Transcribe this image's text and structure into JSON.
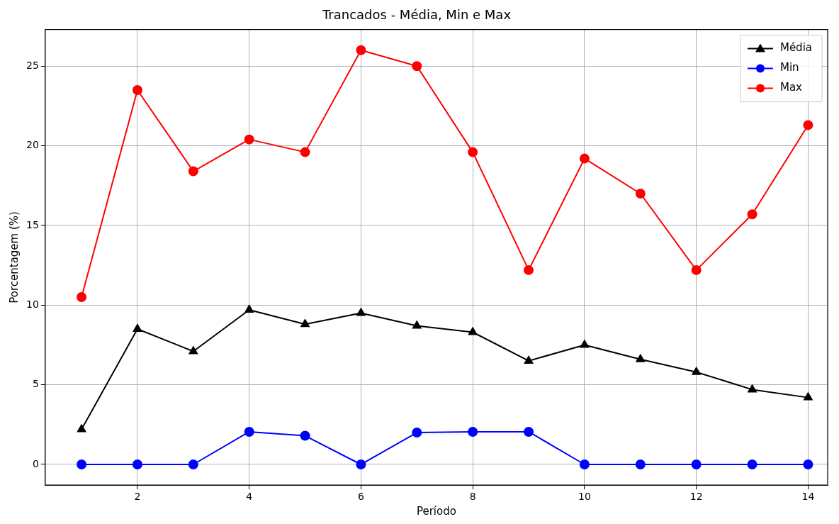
{
  "chart_data": {
    "type": "line",
    "title": "Trancados - Média, Min e Max",
    "xlabel": "Período",
    "ylabel": "Porcentagem (%)",
    "x": [
      1,
      2,
      3,
      4,
      5,
      6,
      7,
      8,
      9,
      10,
      11,
      12,
      13,
      14
    ],
    "series": [
      {
        "name": "Média",
        "color": "#000000",
        "marker": "triangle",
        "values": [
          2.2,
          8.5,
          7.1,
          9.7,
          8.8,
          9.5,
          8.7,
          8.3,
          6.5,
          7.5,
          6.6,
          5.8,
          4.7,
          4.2
        ]
      },
      {
        "name": "Min",
        "color": "#0000ff",
        "marker": "circle",
        "values": [
          0,
          0,
          0,
          2.05,
          1.8,
          0,
          2.0,
          2.05,
          2.05,
          0,
          0,
          0,
          0,
          0
        ]
      },
      {
        "name": "Max",
        "color": "#ff0000",
        "marker": "circle",
        "values": [
          10.5,
          23.5,
          18.4,
          20.4,
          19.6,
          26.0,
          25.0,
          19.6,
          12.2,
          19.2,
          17.0,
          12.2,
          15.7,
          21.3
        ]
      }
    ],
    "xlim": [
      0.35,
      14.35
    ],
    "xticks": [
      2,
      4,
      6,
      8,
      10,
      12,
      14
    ],
    "ylim": [
      -1.3,
      27.3
    ],
    "yticks": [
      0,
      5,
      10,
      15,
      20,
      25
    ],
    "grid": true,
    "legend": "top right",
    "line_style": "solid"
  }
}
